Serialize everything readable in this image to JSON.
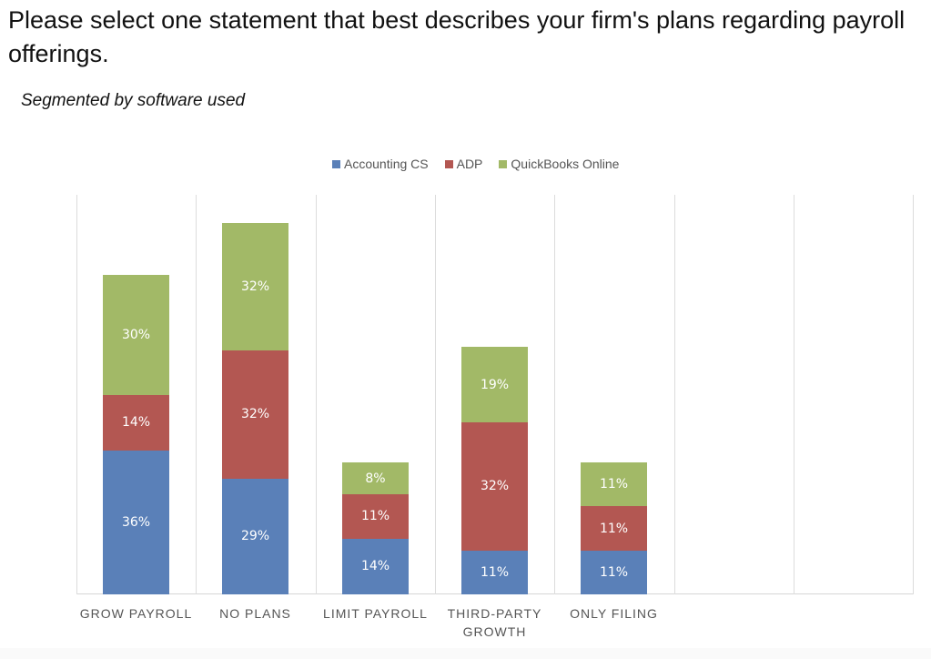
{
  "header": {
    "title": "Please select one statement that best describes your firm's plans regarding payroll offerings.",
    "subtitle": "Segmented by software used"
  },
  "legend": [
    {
      "label": "Accounting CS",
      "color": "#5A80B8"
    },
    {
      "label": "ADP",
      "color": "#B35752"
    },
    {
      "label": "QuickBooks Online",
      "color": "#A2B967"
    }
  ],
  "chart_data": {
    "type": "bar",
    "stacked": true,
    "title": "Please select one statement that best describes your firm's plans regarding payroll offerings.",
    "subtitle": "Segmented by software used",
    "xlabel": "",
    "ylabel": "",
    "categories": [
      "GROW PAYROLL",
      "NO PLANS",
      "LIMIT PAYROLL",
      "THIRD-PARTY GROWTH",
      "ONLY FILING"
    ],
    "series": [
      {
        "name": "Accounting CS",
        "color": "#5A80B8",
        "values": [
          36,
          29,
          14,
          11,
          11
        ],
        "labels": [
          "36%",
          "29%",
          "14%",
          "11%",
          "11%"
        ]
      },
      {
        "name": "ADP",
        "color": "#B35752",
        "values": [
          14,
          32,
          11,
          32,
          11
        ],
        "labels": [
          "14%",
          "32%",
          "11%",
          "32%",
          "11%"
        ]
      },
      {
        "name": "QuickBooks Online",
        "color": "#A2B967",
        "values": [
          30,
          32,
          8,
          19,
          11
        ],
        "labels": [
          "30%",
          "32%",
          "8%",
          "19%",
          "11%"
        ]
      }
    ],
    "legend_position": "top",
    "grid": "vertical category separators",
    "y_axis_visible": false,
    "empty_category_slots": 2
  }
}
